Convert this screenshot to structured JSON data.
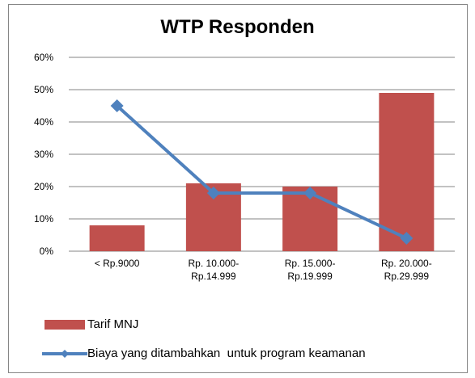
{
  "chart_data": {
    "type": "bar",
    "title": "WTP Responden",
    "categories": [
      "< Rp.9000",
      "Rp. 10.000-\nRp.14.999",
      "Rp. 15.000-\nRp.19.999",
      "Rp. 20.000-\nRp.29.999"
    ],
    "series": [
      {
        "name": "Tarif MNJ",
        "type": "bar",
        "color": "#c0504d",
        "values": [
          8,
          21,
          20,
          49
        ]
      },
      {
        "name": "Biaya yang ditambahkan  untuk program keamanan",
        "type": "line",
        "color": "#4f81bd",
        "values": [
          45,
          18,
          18,
          4
        ]
      }
    ],
    "ylim": [
      0,
      60
    ],
    "yticks": [
      {
        "value": 0,
        "label": "0%"
      },
      {
        "value": 10,
        "label": "10%"
      },
      {
        "value": 20,
        "label": "20%"
      },
      {
        "value": 30,
        "label": "30%"
      },
      {
        "value": 40,
        "label": "40%"
      },
      {
        "value": 50,
        "label": "50%"
      },
      {
        "value": 60,
        "label": "60%"
      }
    ],
    "grid": true
  }
}
